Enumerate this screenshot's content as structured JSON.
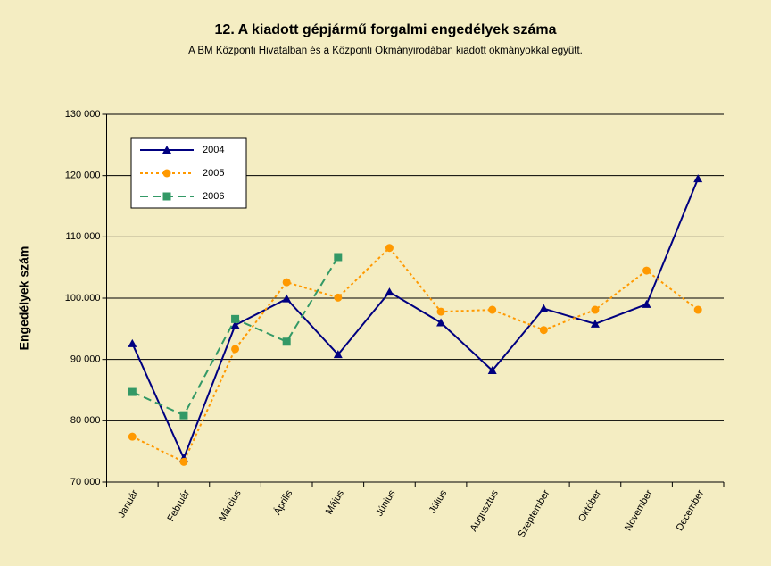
{
  "chart_data": {
    "type": "line",
    "title": "12. A  kiadott gépjármű forgalmi engedélyek száma",
    "subtitle": "A BM Központi Hivatalban és a Központi Okmányirodában kiadott okmányokkal együtt.",
    "y_label": "Engedélyek szám",
    "categories": [
      "Január",
      "Február",
      "Március",
      "Április",
      "Május",
      "Június",
      "Július",
      "Augusztus",
      "Szeptember",
      "Október",
      "November",
      "December"
    ],
    "series": [
      {
        "name": "2004",
        "color": "#000080",
        "marker": "triangle",
        "dash": "solid",
        "values": [
          92600,
          73900,
          95600,
          99900,
          90800,
          101000,
          96000,
          88200,
          98300,
          95800,
          99000,
          119500
        ]
      },
      {
        "name": "2005",
        "color": "#ff9900",
        "marker": "circle",
        "dash": "dotted",
        "values": [
          77400,
          73300,
          91700,
          102600,
          100100,
          108200,
          97800,
          98100,
          94800,
          98100,
          104500,
          98100
        ]
      },
      {
        "name": "2006",
        "color": "#339966",
        "marker": "square",
        "dash": "dashed",
        "values": [
          84700,
          80900,
          96600,
          92900,
          106700,
          null,
          null,
          null,
          null,
          null,
          null,
          null
        ]
      }
    ],
    "ylim": [
      70000,
      130000
    ],
    "yticks": [
      {
        "value": 70000,
        "label": "70 000"
      },
      {
        "value": 80000,
        "label": "80 000"
      },
      {
        "value": 90000,
        "label": "90 000"
      },
      {
        "value": 100000,
        "label": "100.000"
      },
      {
        "value": 110000,
        "label": "110 000"
      },
      {
        "value": 120000,
        "label": "120 000"
      },
      {
        "value": 130000,
        "label": "130 000"
      }
    ],
    "grid": true,
    "legend": "upper left"
  }
}
